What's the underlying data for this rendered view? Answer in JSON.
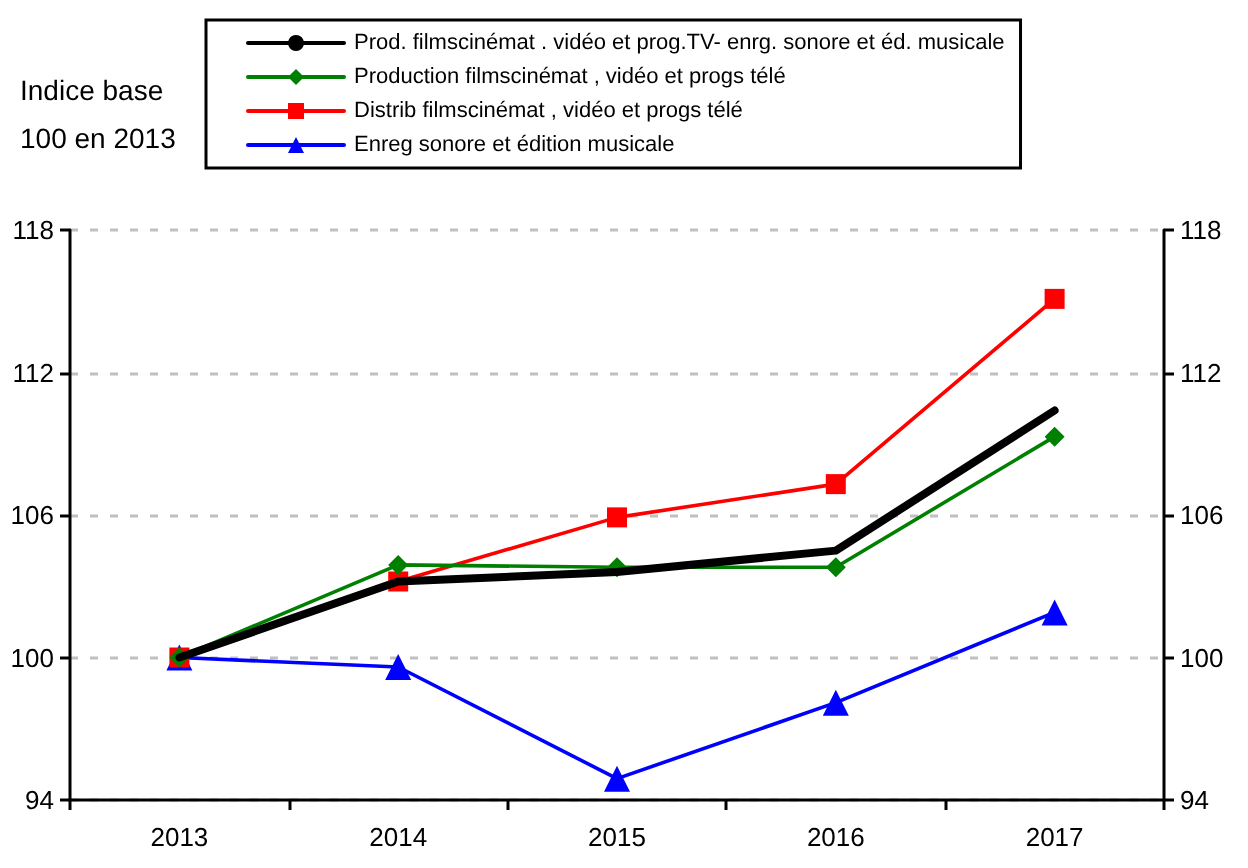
{
  "chart_data": {
    "type": "line",
    "ylabel": "Indice base\n100 en 2013",
    "categories": [
      "2013",
      "2014",
      "2015",
      "2016",
      "2017"
    ],
    "series": [
      {
        "name": "Prod. filmscinémat . vidéo et prog.TV- enrg. sonore et éd. musicale",
        "color": "#000000",
        "marker": "none",
        "values": [
          100,
          103.2,
          103.6,
          104.5,
          110.4
        ]
      },
      {
        "name": "Production filmscinémat , vidéo et progs télé",
        "color": "#008000",
        "marker": "diamond",
        "values": [
          100,
          103.9,
          103.8,
          103.8,
          109.3
        ]
      },
      {
        "name": "Distrib filmscinémat , vidéo et progs télé",
        "color": "#ff0000",
        "marker": "square",
        "values": [
          100,
          103.2,
          105.9,
          107.3,
          115.1
        ]
      },
      {
        "name": "Enreg sonore et édition musicale",
        "color": "#0000ff",
        "marker": "triangle",
        "values": [
          100,
          99.6,
          94.9,
          98.1,
          101.9
        ]
      }
    ],
    "ylim": [
      94,
      118
    ],
    "yticks": [
      94,
      100,
      106,
      112,
      118
    ],
    "y2lim": [
      94,
      118
    ],
    "y2ticks": [
      94,
      100,
      106,
      112,
      118
    ],
    "grid": "y",
    "legend": "top",
    "line_style": "solid"
  }
}
